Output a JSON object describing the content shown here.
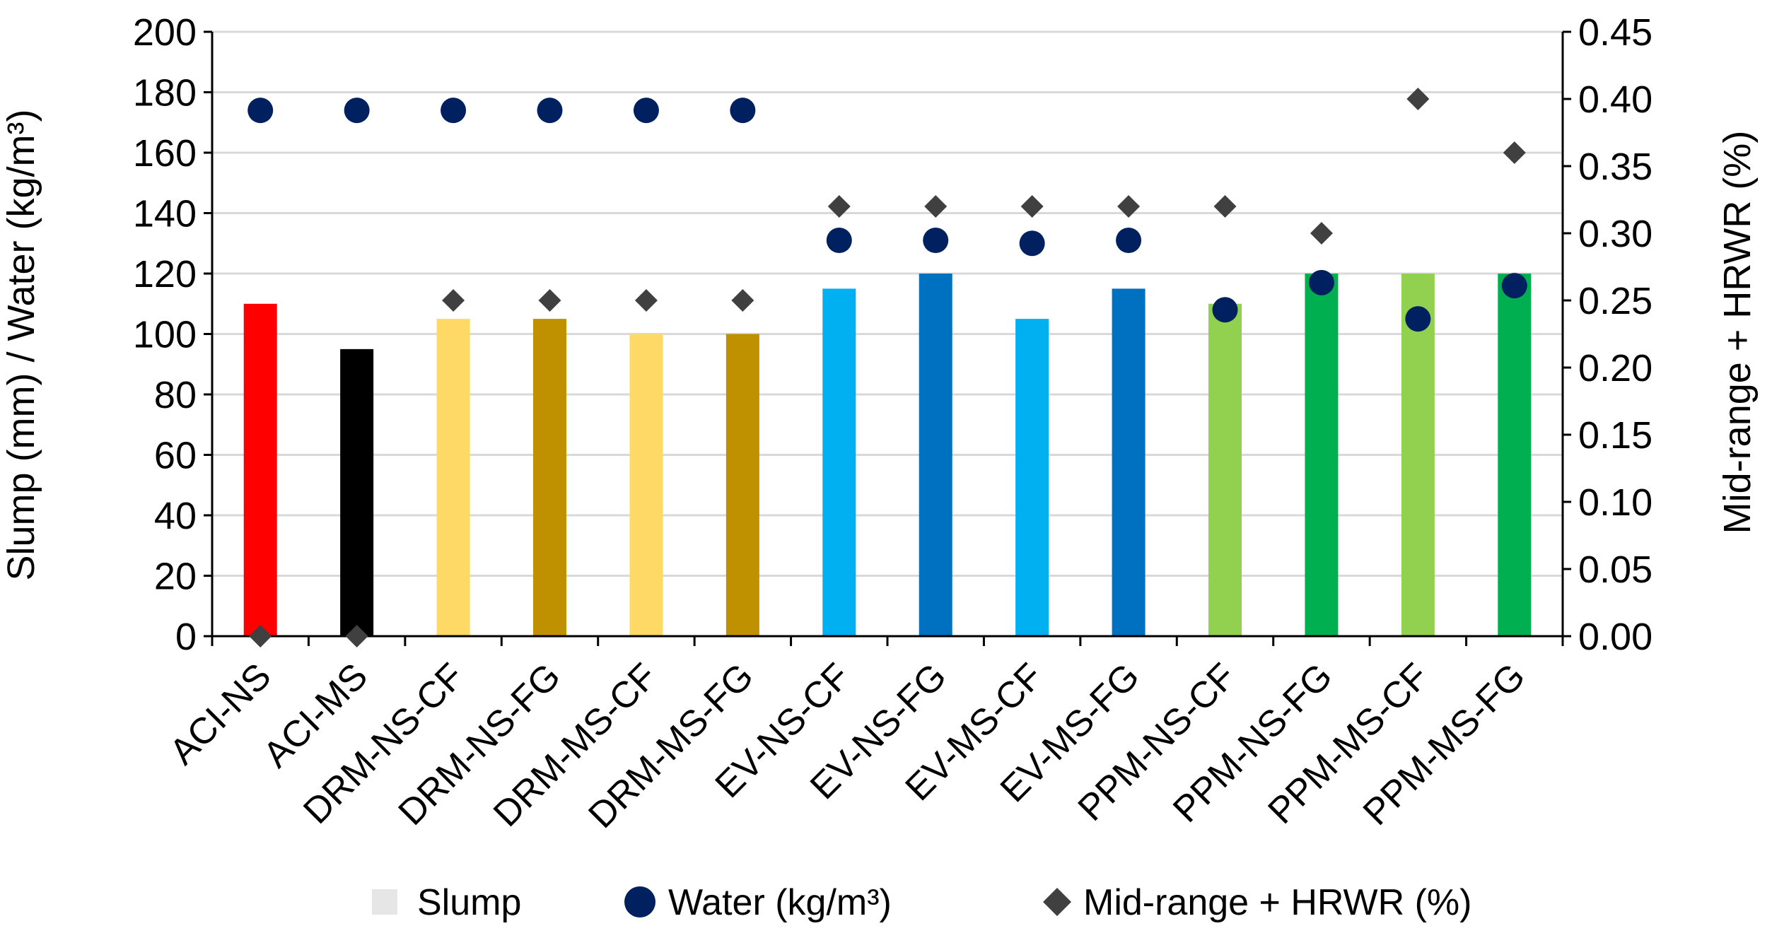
{
  "chart_data": {
    "type": "bar",
    "categories": [
      "ACI-NS",
      "ACI-MS",
      "DRM-NS-CF",
      "DRM-NS-FG",
      "DRM-MS-CF",
      "DRM-MS-FG",
      "EV-NS-CF",
      "EV-NS-FG",
      "EV-MS-CF",
      "EV-MS-FG",
      "PPM-NS-CF",
      "PPM-NS-FG",
      "PPM-MS-CF",
      "PPM-MS-FG"
    ],
    "ylabel": "Slump (mm) / Water (kg/m³)",
    "y2label": "Mid-range + HRWR (%)",
    "ylim": [
      0,
      200
    ],
    "y2lim": [
      0,
      0.45
    ],
    "y_ticks": [
      "0",
      "20",
      "40",
      "60",
      "80",
      "100",
      "120",
      "140",
      "160",
      "180",
      "200"
    ],
    "y2_ticks": [
      "0.00",
      "0.05",
      "0.10",
      "0.15",
      "0.20",
      "0.25",
      "0.30",
      "0.35",
      "0.40",
      "0.45"
    ],
    "grid": true,
    "legend_position": "bottom",
    "series": [
      {
        "name": "Slump",
        "type": "bar",
        "axis": "left",
        "values": [
          110,
          95,
          105,
          105,
          100,
          100,
          115,
          120,
          105,
          115,
          110,
          120,
          120,
          120
        ],
        "colors": [
          "#ff0000",
          "#000000",
          "#ffd966",
          "#bf9000",
          "#ffd966",
          "#bf9000",
          "#00b0f0",
          "#0070c0",
          "#00b0f0",
          "#0070c0",
          "#92d050",
          "#00b050",
          "#92d050",
          "#00b050"
        ]
      },
      {
        "name": "Water (kg/m³)",
        "type": "scatter",
        "marker": "circle",
        "axis": "left",
        "color": "#002060",
        "values": [
          174,
          174,
          174,
          174,
          174,
          174,
          131,
          131,
          130,
          131,
          108,
          117,
          105,
          116
        ]
      },
      {
        "name": "Mid-range + HRWR (%)",
        "type": "scatter",
        "marker": "diamond",
        "axis": "right",
        "color": "#404040",
        "values": [
          0,
          0,
          0.25,
          0.25,
          0.25,
          0.25,
          0.32,
          0.32,
          0.32,
          0.32,
          0.32,
          0.3,
          0.4,
          0.36
        ]
      }
    ]
  }
}
